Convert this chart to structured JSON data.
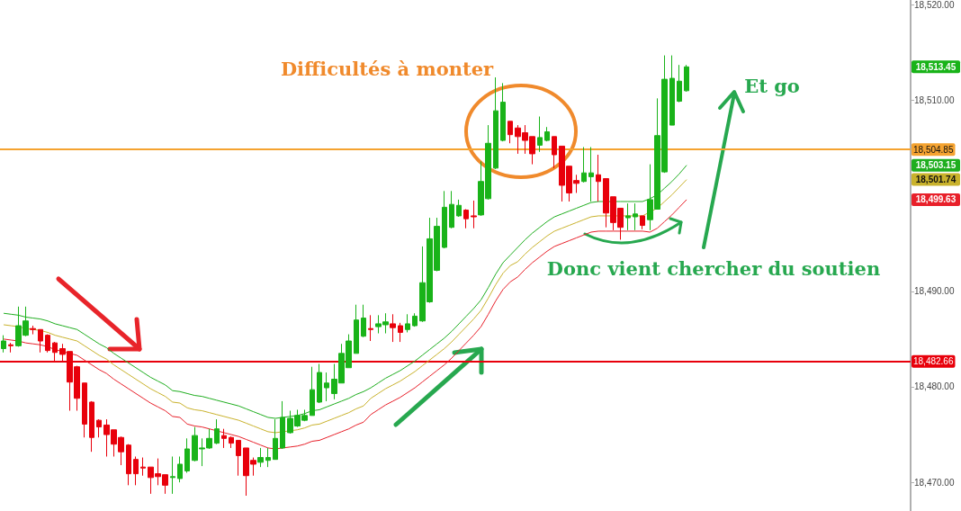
{
  "chart_data": {
    "type": "candlestick",
    "categories": [
      null,
      null,
      null,
      null,
      null,
      null,
      null,
      null,
      null,
      null,
      null,
      null,
      null,
      null,
      null,
      null,
      null,
      null,
      null,
      null,
      null,
      null,
      null,
      null,
      null,
      null,
      null,
      null,
      null,
      null,
      null,
      null,
      null,
      null,
      null,
      null,
      null,
      null,
      null,
      null,
      null,
      null,
      null,
      null,
      null,
      null,
      null,
      null,
      null,
      null,
      null,
      null,
      null,
      null,
      null,
      null,
      null,
      null,
      null,
      null,
      null,
      null,
      null,
      null,
      null,
      null,
      null,
      null,
      null,
      null,
      null,
      null,
      null,
      null,
      null,
      null,
      null,
      null,
      null,
      null,
      null,
      null,
      null,
      null,
      null,
      null,
      null,
      null,
      null,
      null,
      null,
      null,
      null,
      null
    ],
    "ohlc": [
      [
        18484.0,
        18485.4,
        18483.6,
        18484.8
      ],
      [
        18484.4,
        18484.6,
        18483.6,
        18484.3
      ],
      [
        18484.3,
        18488.4,
        18484.2,
        18486.4
      ],
      [
        18485.4,
        18488.4,
        18485.3,
        18486.9
      ],
      [
        18486.1,
        18486.4,
        18485.5,
        18486.0
      ],
      [
        18486.0,
        18486.0,
        18483.6,
        18484.8
      ],
      [
        18485.4,
        18485.5,
        18483.6,
        18483.8
      ],
      [
        18484.6,
        18484.7,
        18482.7,
        18483.6
      ],
      [
        18484.0,
        18484.5,
        18482.7,
        18483.4
      ],
      [
        18483.7,
        18483.7,
        18477.5,
        18480.5
      ],
      [
        18482.1,
        18482.2,
        18477.5,
        18478.8
      ],
      [
        18480.4,
        18480.4,
        18474.7,
        18476.1
      ],
      [
        18478.4,
        18478.5,
        18473.2,
        18474.7
      ],
      [
        18476.5,
        18476.6,
        18474.7,
        18475.8
      ],
      [
        18476.0,
        18476.6,
        18472.7,
        18475.0
      ],
      [
        18475.5,
        18475.5,
        18472.7,
        18474.0
      ],
      [
        18474.7,
        18474.8,
        18471.8,
        18473.2
      ],
      [
        18473.9,
        18474.0,
        18469.7,
        18470.9
      ],
      [
        18472.4,
        18472.7,
        18469.7,
        18470.9
      ],
      [
        18471.6,
        18472.6,
        18470.7,
        18471.5
      ],
      [
        18471.6,
        18471.6,
        18468.8,
        18470.5
      ],
      [
        18470.9,
        18472.5,
        18469.7,
        18470.6
      ],
      [
        18470.8,
        18470.8,
        18468.8,
        18469.7
      ],
      [
        18470.5,
        18472.7,
        18468.8,
        18470.6
      ],
      [
        18470.4,
        18472.7,
        18470.0,
        18471.9
      ],
      [
        18471.2,
        18474.6,
        18471.0,
        18473.5
      ],
      [
        18472.3,
        18475.8,
        18472.2,
        18474.9
      ],
      [
        18473.5,
        18474.6,
        18471.7,
        18473.6
      ],
      [
        18473.6,
        18475.6,
        18473.5,
        18474.6
      ],
      [
        18474.1,
        18476.6,
        18474.0,
        18475.6
      ],
      [
        18474.9,
        18475.6,
        18473.6,
        18474.6
      ],
      [
        18474.7,
        18474.8,
        18473.6,
        18474.1
      ],
      [
        18474.4,
        18474.4,
        18470.7,
        18472.8
      ],
      [
        18473.6,
        18473.6,
        18468.6,
        18470.7
      ],
      [
        18472.3,
        18472.6,
        18470.7,
        18471.9
      ],
      [
        18472.1,
        18473.6,
        18471.6,
        18472.6
      ],
      [
        18472.3,
        18473.6,
        18471.6,
        18472.6
      ],
      [
        18472.4,
        18476.6,
        18472.4,
        18474.6
      ],
      [
        18473.6,
        18478.5,
        18473.5,
        18476.8
      ],
      [
        18475.2,
        18477.5,
        18475.1,
        18476.7
      ],
      [
        18475.9,
        18477.6,
        18475.8,
        18477.0
      ],
      [
        18476.5,
        18477.6,
        18476.4,
        18477.0
      ],
      [
        18477.0,
        18482.1,
        18477.0,
        18479.7
      ],
      [
        18478.4,
        18482.4,
        18478.3,
        18481.5
      ],
      [
        18479.9,
        18481.5,
        18478.5,
        18480.4
      ],
      [
        18479.3,
        18482.4,
        18478.7,
        18480.8
      ],
      [
        18480.4,
        18484.5,
        18480.4,
        18483.5
      ],
      [
        18482.0,
        18485.5,
        18482.0,
        18484.8
      ],
      [
        18483.5,
        18488.6,
        18483.5,
        18487.0
      ],
      [
        18485.3,
        18488.6,
        18485.2,
        18487.2
      ],
      [
        18486.1,
        18487.5,
        18484.8,
        18486.0
      ],
      [
        18486.3,
        18487.5,
        18485.6,
        18486.6
      ],
      [
        18486.5,
        18487.7,
        18485.6,
        18486.8
      ],
      [
        18486.6,
        18487.6,
        18484.7,
        18486.2
      ],
      [
        18486.4,
        18486.7,
        18484.7,
        18485.7
      ],
      [
        18486.0,
        18487.6,
        18485.7,
        18486.6
      ],
      [
        18486.4,
        18487.7,
        18486.3,
        18487.4
      ],
      [
        18486.9,
        18494.7,
        18486.8,
        18490.9
      ],
      [
        18488.9,
        18497.7,
        18488.8,
        18495.5
      ],
      [
        18492.2,
        18497.7,
        18492.1,
        18496.8
      ],
      [
        18494.6,
        18500.5,
        18494.5,
        18498.8
      ],
      [
        18496.7,
        18500.5,
        18496.6,
        18499.1
      ],
      [
        18497.9,
        18499.6,
        18497.8,
        18499.0
      ],
      [
        18498.5,
        18498.6,
        18496.6,
        18497.6
      ],
      [
        18497.9,
        18499.5,
        18496.6,
        18497.8
      ],
      [
        18498.0,
        18503.6,
        18497.9,
        18501.5
      ],
      [
        18499.7,
        18507.4,
        18499.6,
        18505.5
      ],
      [
        18502.9,
        18512.4,
        18502.8,
        18508.9
      ],
      [
        18505.8,
        18511.8,
        18505.7,
        18509.8
      ],
      [
        18507.8,
        18507.8,
        18505.5,
        18506.4
      ],
      [
        18507.1,
        18507.4,
        18504.4,
        18506.2
      ],
      [
        18506.6,
        18507.4,
        18504.4,
        18505.8
      ],
      [
        18506.2,
        18506.2,
        18503.3,
        18504.4
      ],
      [
        18505.3,
        18508.3,
        18504.6,
        18506.1
      ],
      [
        18505.8,
        18507.2,
        18505.7,
        18506.7
      ],
      [
        18506.2,
        18506.2,
        18502.9,
        18504.3
      ],
      [
        18505.2,
        18505.2,
        18499.4,
        18501.1
      ],
      [
        18503.1,
        18503.1,
        18499.4,
        18500.3
      ],
      [
        18501.6,
        18502.2,
        18500.3,
        18501.3
      ],
      [
        18501.5,
        18505.1,
        18501.4,
        18502.4
      ],
      [
        18502.0,
        18505.1,
        18499.4,
        18502.4
      ],
      [
        18502.2,
        18504.3,
        18499.4,
        18501.5
      ],
      [
        18501.8,
        18501.8,
        18496.7,
        18498.2
      ],
      [
        18499.9,
        18499.9,
        18496.4,
        18497.2
      ],
      [
        18498.7,
        18498.7,
        18495.4,
        18496.7
      ],
      [
        18497.7,
        18499.2,
        18496.4,
        18497.9
      ],
      [
        18497.8,
        18499.2,
        18496.4,
        18498.1
      ],
      [
        18497.9,
        18497.9,
        18496.5,
        18496.9
      ],
      [
        18497.5,
        18503.3,
        18496.4,
        18499.6
      ],
      [
        18498.6,
        18510.2,
        18498.6,
        18506.3
      ],
      [
        18502.5,
        18514.7,
        18502.4,
        18512.2
      ],
      [
        18507.4,
        18514.7,
        18507.4,
        18512.3
      ],
      [
        18509.9,
        18513.7,
        18509.8,
        18512.0
      ],
      [
        18511.0,
        18513.7,
        18510.9,
        18513.5
      ]
    ],
    "colors": [
      "#19b319",
      "#e8000b",
      "#19b319",
      "#19b319",
      "#e8000b",
      "#e8000b",
      "#e8000b",
      "#e8000b",
      "#e8000b",
      "#e8000b",
      "#e8000b",
      "#e8000b",
      "#e8000b",
      "#e8000b",
      "#e8000b",
      "#e8000b",
      "#e8000b",
      "#e8000b",
      "#e8000b",
      "#e8000b",
      "#e8000b",
      "#e8000b",
      "#e8000b",
      "#19b319",
      "#19b319",
      "#19b319",
      "#19b319",
      "#19b319",
      "#19b319",
      "#19b319",
      "#e8000b",
      "#e8000b",
      "#e8000b",
      "#e8000b",
      "#e8000b",
      "#19b319",
      "#19b319",
      "#19b319",
      "#19b319",
      "#19b319",
      "#19b319",
      "#19b319",
      "#19b319",
      "#19b319",
      "#19b319",
      "#19b319",
      "#19b319",
      "#19b319",
      "#19b319",
      "#19b319",
      "#e8000b",
      "#19b319",
      "#19b319",
      "#e8000b",
      "#e8000b",
      "#19b319",
      "#19b319",
      "#19b319",
      "#19b319",
      "#19b319",
      "#19b319",
      "#19b319",
      "#19b319",
      "#e8000b",
      "#e8000b",
      "#19b319",
      "#19b319",
      "#19b319",
      "#19b319",
      "#e8000b",
      "#e8000b",
      "#e8000b",
      "#e8000b",
      "#19b319",
      "#19b319",
      "#e8000b",
      "#e8000b",
      "#e8000b",
      "#e8000b",
      "#19b319",
      "#19b319",
      "#e8000b",
      "#e8000b",
      "#e8000b",
      "#e8000b",
      "#19b319",
      "#19b319",
      "#e8000b",
      "#19b319",
      "#19b319",
      "#19b319",
      "#19b319",
      "#19b319",
      "#19b319"
    ],
    "series": [
      {
        "type": "line",
        "color": "#1fae1f",
        "values": [
          18487.7,
          18487.6,
          18487.5,
          18487.3,
          18487.2,
          18487.1,
          18486.9,
          18486.6,
          18486.4,
          18486.2,
          18486.0,
          18485.5,
          18485.0,
          18484.5,
          18484.1,
          18483.5,
          18483.0,
          18482.5,
          18482.0,
          18481.5,
          18481.0,
          18480.6,
          18480.2,
          18479.6,
          18479.5,
          18479.3,
          18479.1,
          18479.0,
          18478.8,
          18478.6,
          18478.4,
          18478.2,
          18478.0,
          18477.7,
          18477.4,
          18477.1,
          18476.8,
          18476.7,
          18476.8,
          18476.9,
          18477.0,
          18477.2,
          18477.5,
          18477.6,
          18477.9,
          18478.2,
          18478.5,
          18478.8,
          18479.2,
          18479.5,
          18479.9,
          18480.4,
          18480.9,
          18481.3,
          18481.7,
          18482.2,
          18482.7,
          18483.3,
          18483.9,
          18484.5,
          18485.1,
          18485.8,
          18486.6,
          18487.4,
          18488.2,
          18489.1,
          18490.4,
          18491.8,
          18493.0,
          18493.8,
          18494.6,
          18495.4,
          18496.1,
          18496.7,
          18497.3,
          18497.8,
          18498.1,
          18498.4,
          18498.7,
          18499.0,
          18499.3,
          18499.4,
          18499.4,
          18499.4,
          18499.4,
          18499.4,
          18499.4,
          18499.4,
          18499.7,
          18500.1,
          18500.8,
          18501.5,
          18502.3,
          18503.2
        ]
      },
      {
        "type": "line",
        "color": "#c9b22c",
        "values": [
          18486.5,
          18486.4,
          18486.3,
          18486.1,
          18486.0,
          18485.9,
          18485.7,
          18485.4,
          18485.2,
          18485.0,
          18484.8,
          18484.3,
          18483.8,
          18483.3,
          18482.9,
          18482.3,
          18481.8,
          18481.3,
          18480.8,
          18480.3,
          18479.8,
          18479.4,
          18479.0,
          18478.4,
          18478.3,
          18477.8,
          18477.6,
          18477.5,
          18477.3,
          18477.1,
          18476.9,
          18476.7,
          18476.5,
          18476.2,
          18475.9,
          18475.6,
          18475.3,
          18475.2,
          18475.3,
          18475.4,
          18475.5,
          18475.7,
          18476.0,
          18476.1,
          18476.4,
          18476.7,
          18477.0,
          18477.3,
          18477.7,
          18478.0,
          18478.8,
          18479.3,
          18479.8,
          18480.2,
          18480.6,
          18481.1,
          18481.6,
          18482.2,
          18482.8,
          18483.4,
          18484.0,
          18484.7,
          18485.5,
          18486.3,
          18487.1,
          18488.0,
          18489.3,
          18490.7,
          18491.9,
          18492.7,
          18493.1,
          18493.9,
          18494.6,
          18495.2,
          18495.8,
          18496.3,
          18496.6,
          18496.9,
          18497.2,
          18497.5,
          18497.8,
          18497.9,
          18497.9,
          18497.9,
          18497.9,
          18497.9,
          18497.9,
          18497.9,
          18498.3,
          18498.7,
          18499.4,
          18500.1,
          18500.9,
          18501.7
        ]
      },
      {
        "type": "line",
        "color": "#e8202a",
        "values": [
          18485.0,
          18484.9,
          18484.8,
          18484.6,
          18484.5,
          18484.4,
          18484.2,
          18483.9,
          18483.7,
          18483.5,
          18483.3,
          18482.8,
          18482.3,
          18481.8,
          18481.4,
          18480.8,
          18480.3,
          18479.8,
          18479.3,
          18478.8,
          18478.3,
          18477.9,
          18477.5,
          18476.9,
          18476.8,
          18476.1,
          18475.9,
          18475.8,
          18475.6,
          18475.4,
          18475.2,
          18475.0,
          18474.8,
          18474.5,
          18474.2,
          18473.9,
          18473.6,
          18473.5,
          18473.6,
          18473.7,
          18473.8,
          18474.0,
          18474.3,
          18474.4,
          18474.7,
          18475.0,
          18475.3,
          18475.6,
          18476.0,
          18476.3,
          18477.1,
          18477.6,
          18478.1,
          18478.5,
          18478.9,
          18479.4,
          18479.9,
          18480.5,
          18481.1,
          18481.7,
          18482.3,
          18483.0,
          18483.8,
          18484.6,
          18485.4,
          18486.3,
          18487.6,
          18489.0,
          18490.2,
          18491.0,
          18491.5,
          18492.3,
          18493.0,
          18493.6,
          18494.2,
          18494.7,
          18495.0,
          18495.3,
          18495.6,
          18495.9,
          18496.2,
          18496.3,
          18496.3,
          18496.3,
          18496.3,
          18496.3,
          18496.3,
          18496.3,
          18496.2,
          18496.6,
          18497.3,
          18498.0,
          18498.8,
          18499.6
        ]
      }
    ],
    "ylim": [
      18467,
      18520.5
    ],
    "yticks": [
      {
        "value": 18470,
        "label": "18,470.00"
      },
      {
        "value": 18480,
        "label": "18,480.00"
      },
      {
        "value": 18490,
        "label": "18,490.00"
      },
      {
        "value": 18510,
        "label": "18,510.00"
      },
      {
        "value": 18520,
        "label": "18,520.00"
      }
    ],
    "tick_labels": "y",
    "marker": "none",
    "ref_lines": [
      {
        "axis": "y",
        "value": 18504.85,
        "label": "18,504.85",
        "color": "#f5a330"
      },
      {
        "axis": "y",
        "value": 18482.66,
        "label": "18,482.66",
        "color": "#e8000b"
      }
    ],
    "annotations": [
      "Difficultés à monter",
      "Et go",
      "Donc vient chercher du soutien",
      "18,513.45",
      "18,503.15",
      "18,501.74",
      "18,499.63"
    ]
  }
}
